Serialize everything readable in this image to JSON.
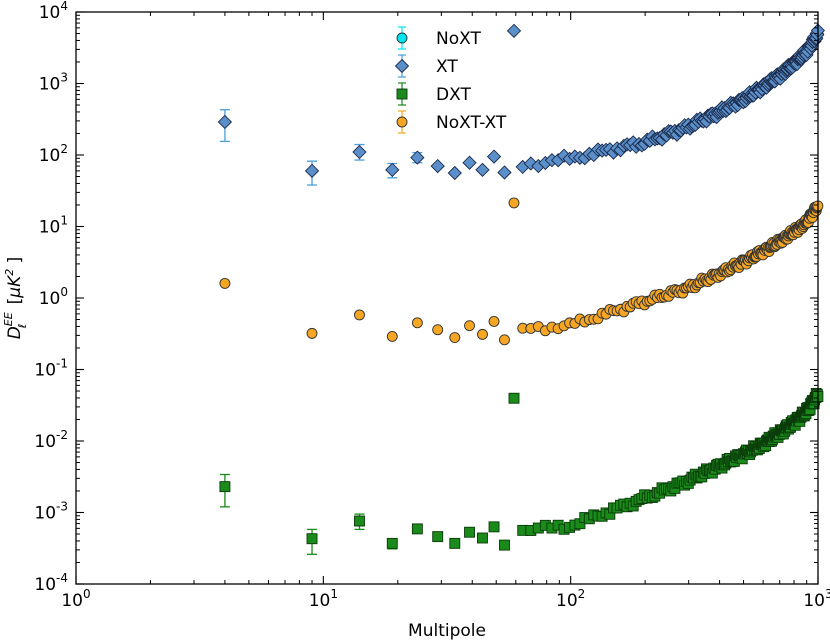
{
  "chart_data": {
    "type": "scatter",
    "title": "",
    "xlabel": "Multipole",
    "ylabel": "D_ℓ^{EE} [μK²]",
    "xscale": "log",
    "yscale": "log",
    "xlim": [
      1,
      1000
    ],
    "ylim": [
      0.0001,
      10000
    ],
    "x_ticks": [
      {
        "value": 1,
        "base": "10",
        "exp": "0"
      },
      {
        "value": 10,
        "base": "10",
        "exp": "1"
      },
      {
        "value": 100,
        "base": "10",
        "exp": "2"
      },
      {
        "value": 1000,
        "base": "10",
        "exp": "3"
      }
    ],
    "y_ticks": [
      {
        "value": 0.0001,
        "base": "10",
        "exp": "-4"
      },
      {
        "value": 0.001,
        "base": "10",
        "exp": "-3"
      },
      {
        "value": 0.01,
        "base": "10",
        "exp": "-2"
      },
      {
        "value": 0.1,
        "base": "10",
        "exp": "-1"
      },
      {
        "value": 1,
        "base": "10",
        "exp": "0"
      },
      {
        "value": 10,
        "base": "10",
        "exp": "1"
      },
      {
        "value": 100,
        "base": "10",
        "exp": "2"
      },
      {
        "value": 1000,
        "base": "10",
        "exp": "3"
      },
      {
        "value": 10000,
        "base": "10",
        "exp": "4"
      }
    ],
    "legend_position": "top-center",
    "series": [
      {
        "name": "NoXT",
        "marker": "circle",
        "color": "#00e5ee",
        "anchors": [],
        "low_points": []
      },
      {
        "name": "XT",
        "marker": "diamond",
        "color": "#5b8fc9",
        "errcolor": "#4a9fd8",
        "anchors": [
          [
            60,
            70
          ],
          [
            100,
            90
          ],
          [
            200,
            150
          ],
          [
            300,
            250
          ],
          [
            400,
            400
          ],
          [
            500,
            600
          ],
          [
            600,
            900
          ],
          [
            700,
            1300
          ],
          [
            800,
            1900
          ],
          [
            900,
            2800
          ],
          [
            1000,
            5000
          ]
        ],
        "low_points": [
          {
            "x": 4,
            "y": 290,
            "lo": 155,
            "hi": 430
          },
          {
            "x": 9,
            "y": 60,
            "lo": 38,
            "hi": 82
          },
          {
            "x": 14,
            "y": 110,
            "lo": 85,
            "hi": 140
          },
          {
            "x": 19,
            "y": 62,
            "lo": 48,
            "hi": 76
          },
          {
            "x": 24,
            "y": 92,
            "lo": 78,
            "hi": 108
          },
          {
            "x": 29,
            "y": 70
          },
          {
            "x": 34,
            "y": 56
          },
          {
            "x": 39,
            "y": 78
          },
          {
            "x": 44,
            "y": 62
          },
          {
            "x": 49,
            "y": 95
          },
          {
            "x": 54,
            "y": 57
          }
        ]
      },
      {
        "name": "DXT",
        "marker": "square",
        "color": "#1a8a1a",
        "errcolor": "#1a8a1a",
        "anchors": [
          [
            60,
            0.00055
          ],
          [
            100,
            0.00065
          ],
          [
            200,
            0.0016
          ],
          [
            300,
            0.0028
          ],
          [
            400,
            0.0045
          ],
          [
            500,
            0.0065
          ],
          [
            600,
            0.009
          ],
          [
            700,
            0.013
          ],
          [
            800,
            0.018
          ],
          [
            900,
            0.026
          ],
          [
            1000,
            0.045
          ]
        ],
        "low_points": [
          {
            "x": 4,
            "y": 0.0023,
            "lo": 0.0012,
            "hi": 0.0034
          },
          {
            "x": 9,
            "y": 0.00043,
            "lo": 0.00026,
            "hi": 0.00058
          },
          {
            "x": 14,
            "y": 0.00076,
            "lo": 0.00058,
            "hi": 0.00095
          },
          {
            "x": 19,
            "y": 0.00037,
            "lo": 0.00031,
            "hi": 0.00043
          },
          {
            "x": 24,
            "y": 0.00059,
            "lo": 0.00052,
            "hi": 0.00066
          },
          {
            "x": 29,
            "y": 0.00046
          },
          {
            "x": 34,
            "y": 0.00037
          },
          {
            "x": 39,
            "y": 0.00053
          },
          {
            "x": 44,
            "y": 0.00044
          },
          {
            "x": 49,
            "y": 0.00063
          },
          {
            "x": 54,
            "y": 0.00035
          }
        ]
      },
      {
        "name": "NoXT-XT",
        "marker": "circle",
        "color": "#f5a623",
        "errcolor": "#f5a623",
        "anchors": [
          [
            60,
            0.35
          ],
          [
            100,
            0.42
          ],
          [
            200,
            0.9
          ],
          [
            300,
            1.4
          ],
          [
            400,
            2.2
          ],
          [
            500,
            3.2
          ],
          [
            600,
            4.5
          ],
          [
            700,
            6.2
          ],
          [
            800,
            8.5
          ],
          [
            900,
            11.5
          ],
          [
            1000,
            20
          ]
        ],
        "low_points": [
          {
            "x": 4,
            "y": 1.6
          },
          {
            "x": 9,
            "y": 0.32
          },
          {
            "x": 14,
            "y": 0.58
          },
          {
            "x": 19,
            "y": 0.29
          },
          {
            "x": 24,
            "y": 0.45
          },
          {
            "x": 29,
            "y": 0.36
          },
          {
            "x": 34,
            "y": 0.28
          },
          {
            "x": 39,
            "y": 0.41
          },
          {
            "x": 44,
            "y": 0.31
          },
          {
            "x": 49,
            "y": 0.47
          },
          {
            "x": 54,
            "y": 0.26
          }
        ]
      }
    ],
    "dense_range": {
      "start": 59,
      "end": 1000,
      "step": 5
    }
  }
}
